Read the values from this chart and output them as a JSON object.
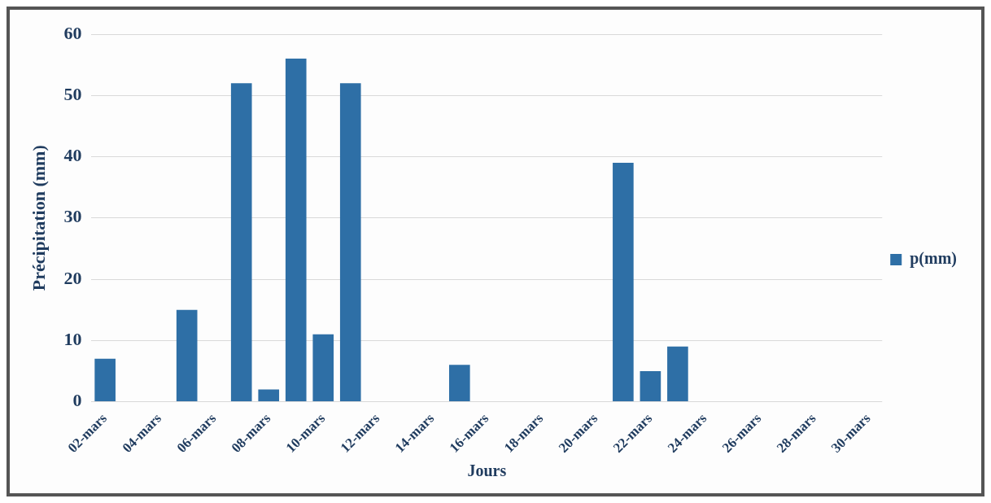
{
  "chart_data": {
    "type": "bar",
    "xlabel": "Jours",
    "ylabel": "Précipitation (mm)",
    "categories": [
      "02-mars",
      null,
      "04-mars",
      null,
      "06-mars",
      null,
      "08-mars",
      null,
      "10-mars",
      null,
      "12-mars",
      null,
      "14-mars",
      null,
      "16-mars",
      null,
      "18-mars",
      null,
      "20-mars",
      null,
      "22-mars",
      null,
      "24-mars",
      null,
      "26-mars",
      null,
      "28-mars",
      null,
      "30-mars"
    ],
    "series": [
      {
        "name": "p(mm)",
        "color": "#2e6fa6",
        "values": [
          7,
          0,
          0,
          15,
          0,
          52,
          2,
          56,
          11,
          52,
          0,
          0,
          0,
          6,
          0,
          0,
          0,
          0,
          0,
          39,
          5,
          9,
          0,
          0,
          0,
          0,
          0,
          0,
          0
        ]
      }
    ],
    "ylim": [
      0,
      60
    ],
    "yticks": [
      0,
      10,
      20,
      30,
      40,
      50,
      60
    ],
    "grid": "y",
    "legend": "right"
  }
}
